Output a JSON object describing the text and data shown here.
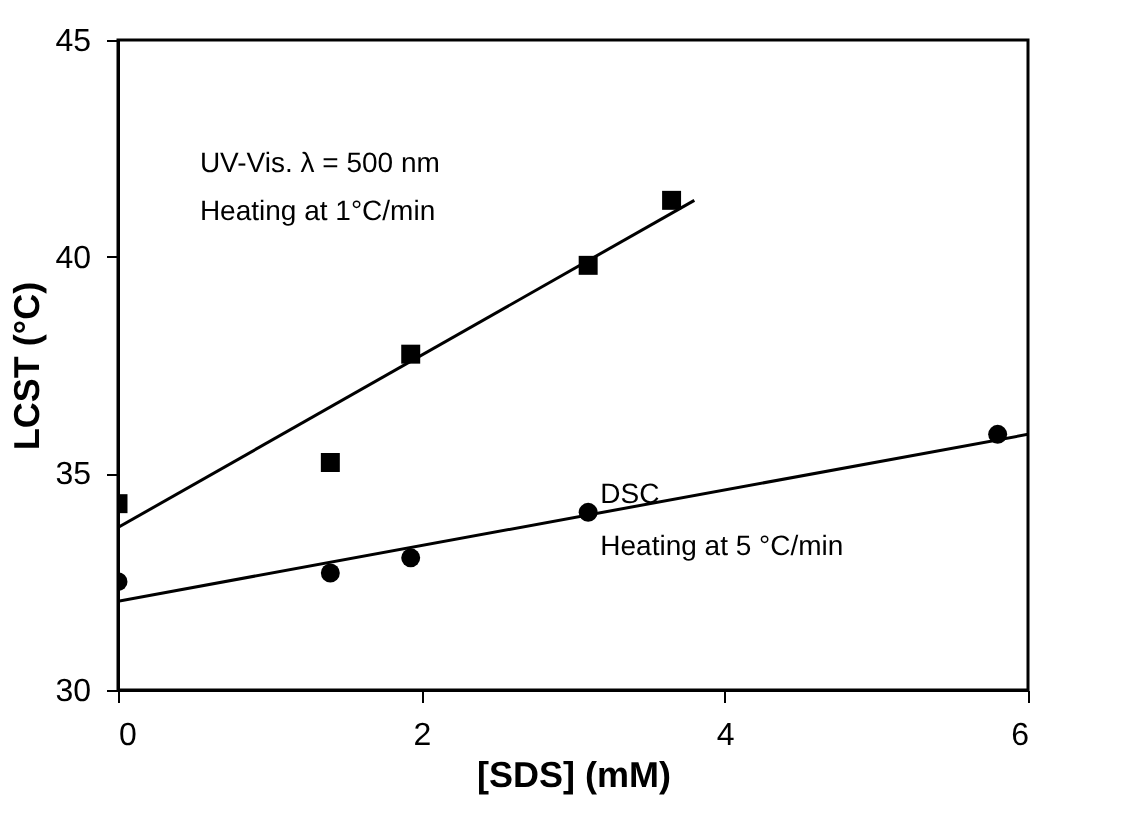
{
  "chart_data": {
    "type": "scatter",
    "xlabel": "[SDS] (mM)",
    "ylabel": "LCST (°C)",
    "xlim": [
      0,
      6
    ],
    "ylim": [
      30,
      45
    ],
    "xticks": [
      0,
      2,
      4,
      6
    ],
    "yticks": [
      30,
      35,
      40,
      45
    ],
    "grid": false,
    "series": [
      {
        "marker": "square",
        "color": "#000000",
        "x": [
          0,
          1.4,
          1.93,
          3.1,
          3.65
        ],
        "values": [
          34.3,
          35.25,
          37.75,
          39.8,
          41.3
        ]
      },
      {
        "marker": "circle",
        "color": "#000000",
        "x": [
          0,
          1.4,
          1.93,
          3.1,
          5.8
        ],
        "values": [
          32.5,
          32.7,
          33.05,
          34.1,
          35.9
        ]
      },
      {
        "type": "line",
        "marker": "none",
        "color": "#000000",
        "x": [
          0,
          3.8
        ],
        "values": [
          33.75,
          41.3
        ]
      },
      {
        "type": "line",
        "marker": "none",
        "color": "#000000",
        "x": [
          0,
          6
        ],
        "values": [
          32.05,
          35.9
        ]
      }
    ],
    "annotations": [
      "UV-Vis. λ = 500 nm",
      "Heating at 1°C/min",
      "DSC",
      "Heating at 5 °C/min"
    ]
  }
}
